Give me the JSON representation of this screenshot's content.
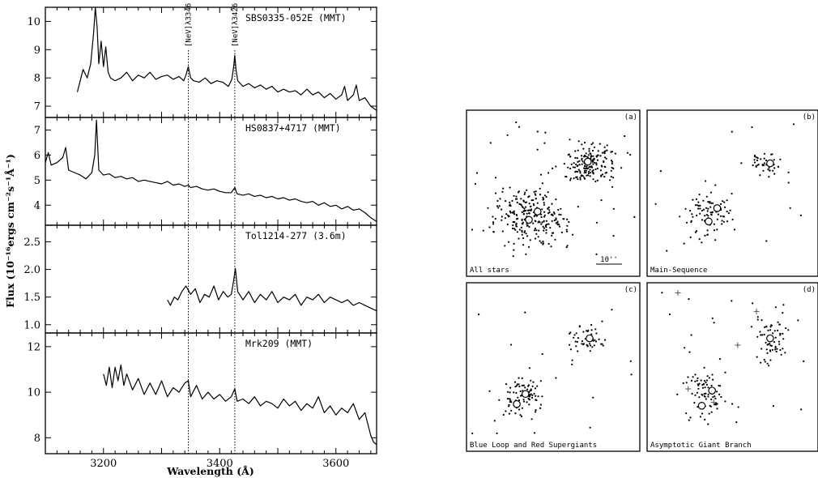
{
  "chart_data": [
    {
      "type": "line",
      "xlabel": "Wavelength (Å)",
      "ylabel": "Flux (10⁻¹⁶ergs cm⁻²s⁻¹Å⁻¹)",
      "xlim": [
        3100,
        3670
      ],
      "xticks": [
        3200,
        3400,
        3600
      ],
      "line_markers": [
        {
          "label": "[NeV]λ3346",
          "x": 3346
        },
        {
          "label": "[NeV]λ3426",
          "x": 3426
        }
      ],
      "panels": [
        {
          "name": "SBS0335-052E (MMT)",
          "ylim": [
            6.6,
            10.5
          ],
          "yticks": [
            7,
            8,
            9,
            10
          ],
          "x": [
            3155,
            3165,
            3172,
            3178,
            3183,
            3186,
            3189,
            3192,
            3196,
            3200,
            3204,
            3208,
            3212,
            3220,
            3230,
            3240,
            3250,
            3260,
            3270,
            3280,
            3290,
            3300,
            3310,
            3320,
            3330,
            3338,
            3342,
            3346,
            3350,
            3355,
            3365,
            3375,
            3385,
            3395,
            3405,
            3415,
            3421,
            3424,
            3426,
            3428,
            3431,
            3440,
            3450,
            3460,
            3470,
            3480,
            3490,
            3500,
            3510,
            3520,
            3530,
            3540,
            3550,
            3560,
            3570,
            3580,
            3590,
            3600,
            3610,
            3615,
            3620,
            3630,
            3635,
            3640,
            3650,
            3660,
            3670
          ],
          "y": [
            7.5,
            8.3,
            8.0,
            8.5,
            9.6,
            10.5,
            9.8,
            8.5,
            9.3,
            8.4,
            9.1,
            8.2,
            8.0,
            7.9,
            8.0,
            8.2,
            7.9,
            8.1,
            8.0,
            8.2,
            7.95,
            8.05,
            8.1,
            7.95,
            8.05,
            7.9,
            8.1,
            8.4,
            8.0,
            7.9,
            7.85,
            8.0,
            7.8,
            7.9,
            7.85,
            7.7,
            7.95,
            8.4,
            8.8,
            8.3,
            7.9,
            7.7,
            7.8,
            7.65,
            7.75,
            7.6,
            7.7,
            7.5,
            7.6,
            7.5,
            7.55,
            7.4,
            7.6,
            7.4,
            7.5,
            7.3,
            7.45,
            7.25,
            7.4,
            7.7,
            7.2,
            7.4,
            7.75,
            7.2,
            7.3,
            7.0,
            6.85
          ]
        },
        {
          "name": "HS0837+4717 (MMT)",
          "ylim": [
            3.2,
            7.5
          ],
          "yticks": [
            4,
            5,
            6,
            7
          ],
          "x": [
            3100,
            3105,
            3110,
            3120,
            3130,
            3135,
            3140,
            3150,
            3160,
            3170,
            3180,
            3185,
            3188,
            3192,
            3200,
            3210,
            3220,
            3230,
            3240,
            3250,
            3260,
            3270,
            3280,
            3290,
            3300,
            3310,
            3320,
            3330,
            3340,
            3346,
            3350,
            3360,
            3370,
            3380,
            3390,
            3400,
            3410,
            3420,
            3426,
            3430,
            3440,
            3450,
            3460,
            3470,
            3480,
            3490,
            3500,
            3510,
            3520,
            3530,
            3540,
            3550,
            3560,
            3570,
            3580,
            3590,
            3600,
            3610,
            3620,
            3630,
            3640,
            3650,
            3660,
            3670
          ],
          "y": [
            5.7,
            6.1,
            5.6,
            5.7,
            5.9,
            6.3,
            5.4,
            5.3,
            5.2,
            5.05,
            5.3,
            6.0,
            7.4,
            5.4,
            5.2,
            5.25,
            5.1,
            5.15,
            5.05,
            5.1,
            4.95,
            5.0,
            4.95,
            4.9,
            4.85,
            4.95,
            4.8,
            4.85,
            4.75,
            4.8,
            4.7,
            4.75,
            4.65,
            4.6,
            4.65,
            4.55,
            4.5,
            4.5,
            4.7,
            4.45,
            4.4,
            4.45,
            4.35,
            4.4,
            4.3,
            4.35,
            4.25,
            4.3,
            4.2,
            4.25,
            4.15,
            4.1,
            4.15,
            4.0,
            4.1,
            3.95,
            4.0,
            3.85,
            3.95,
            3.8,
            3.85,
            3.7,
            3.5,
            3.35
          ]
        },
        {
          "name": "Tol1214-277 (3.6m)",
          "ylim": [
            0.85,
            2.8
          ],
          "yticks": [
            1.0,
            1.5,
            2.0,
            2.5
          ],
          "x": [
            3310,
            3315,
            3322,
            3328,
            3335,
            3342,
            3350,
            3358,
            3366,
            3374,
            3382,
            3390,
            3398,
            3406,
            3414,
            3420,
            3424,
            3427,
            3431,
            3440,
            3450,
            3460,
            3470,
            3480,
            3490,
            3500,
            3510,
            3520,
            3530,
            3540,
            3550,
            3560,
            3570,
            3580,
            3590,
            3600,
            3610,
            3620,
            3630,
            3640,
            3650,
            3660,
            3670
          ],
          "y": [
            1.45,
            1.35,
            1.5,
            1.45,
            1.6,
            1.7,
            1.55,
            1.65,
            1.4,
            1.55,
            1.5,
            1.7,
            1.45,
            1.6,
            1.5,
            1.55,
            1.8,
            2.02,
            1.6,
            1.45,
            1.6,
            1.4,
            1.55,
            1.45,
            1.6,
            1.4,
            1.5,
            1.45,
            1.55,
            1.35,
            1.5,
            1.45,
            1.55,
            1.4,
            1.5,
            1.45,
            1.4,
            1.45,
            1.35,
            1.4,
            1.35,
            1.3,
            1.25
          ]
        },
        {
          "name": "Mrk209 (MMT)",
          "ylim": [
            7.3,
            12.6
          ],
          "yticks": [
            8,
            10,
            12
          ],
          "x": [
            3200,
            3205,
            3210,
            3215,
            3220,
            3225,
            3230,
            3235,
            3240,
            3250,
            3260,
            3270,
            3280,
            3290,
            3300,
            3310,
            3320,
            3330,
            3340,
            3346,
            3350,
            3360,
            3370,
            3380,
            3390,
            3400,
            3410,
            3420,
            3426,
            3430,
            3440,
            3450,
            3460,
            3470,
            3480,
            3490,
            3500,
            3510,
            3520,
            3530,
            3540,
            3550,
            3560,
            3570,
            3580,
            3590,
            3600,
            3610,
            3620,
            3630,
            3640,
            3650,
            3655,
            3660,
            3665,
            3670
          ],
          "y": [
            10.8,
            10.3,
            11.1,
            10.2,
            11.1,
            10.5,
            11.2,
            10.3,
            10.8,
            10.1,
            10.6,
            9.9,
            10.4,
            9.9,
            10.5,
            9.8,
            10.2,
            10.0,
            10.4,
            10.5,
            9.8,
            10.3,
            9.7,
            10.0,
            9.7,
            9.9,
            9.6,
            9.8,
            10.15,
            9.6,
            9.7,
            9.5,
            9.8,
            9.4,
            9.6,
            9.5,
            9.3,
            9.7,
            9.4,
            9.6,
            9.2,
            9.5,
            9.3,
            9.8,
            9.1,
            9.4,
            9.0,
            9.3,
            9.1,
            9.5,
            8.8,
            9.1,
            8.6,
            8.1,
            7.8,
            7.7
          ]
        }
      ]
    },
    {
      "type": "scatter",
      "panels": [
        {
          "tag": "(a)",
          "label": "All stars",
          "scale_bar": "10''"
        },
        {
          "tag": "(b)",
          "label": "Main-Sequence"
        },
        {
          "tag": "(c)",
          "label": "Blue Loop and Red Supergiants"
        },
        {
          "tag": "(d)",
          "label": "Asymptotic Giant Branch"
        }
      ]
    }
  ]
}
